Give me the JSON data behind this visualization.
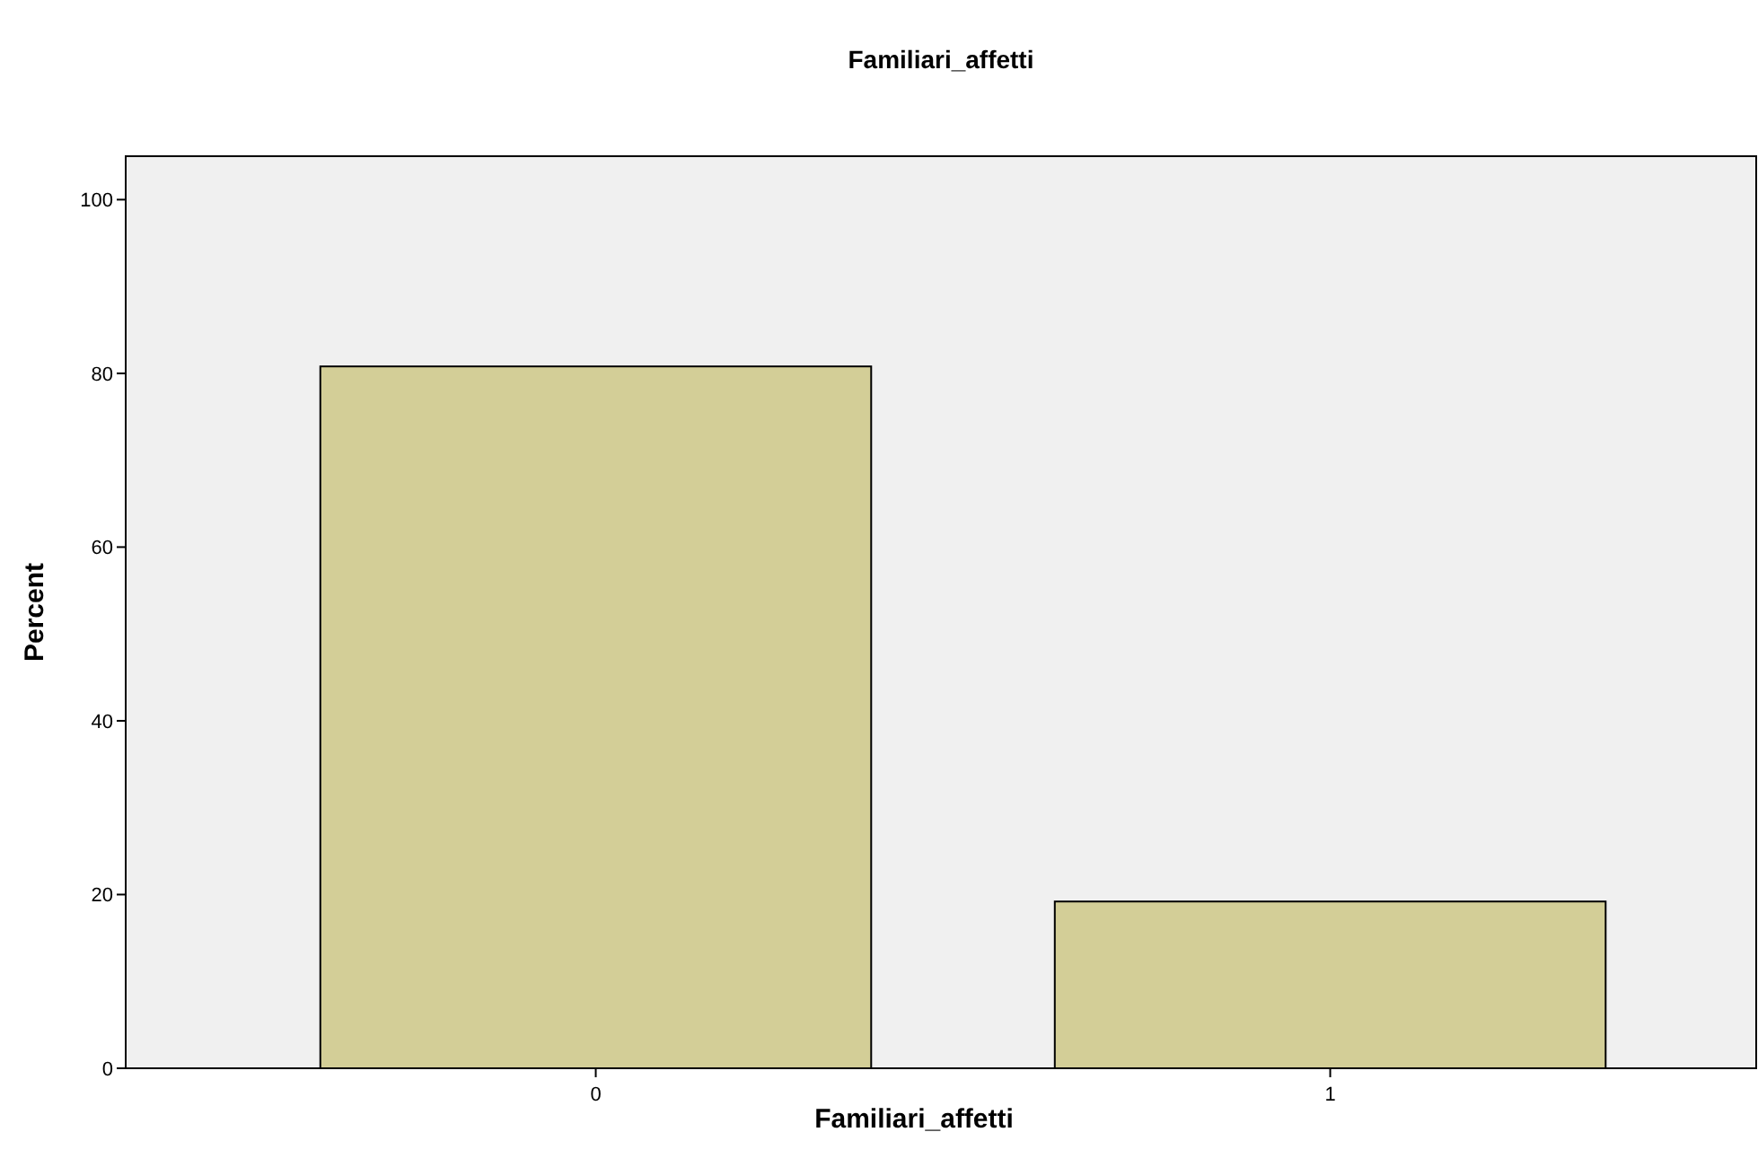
{
  "chart_data": {
    "type": "bar",
    "title": "Familiari_affetti",
    "xlabel": "Familiari_affetti",
    "ylabel": "Percent",
    "categories": [
      "0",
      "1"
    ],
    "values": [
      80.8,
      19.2
    ],
    "color": "#d3ce97",
    "ylim": [
      0,
      105
    ],
    "yticks": [
      0,
      20,
      40,
      60,
      80,
      100
    ],
    "grid": false
  }
}
